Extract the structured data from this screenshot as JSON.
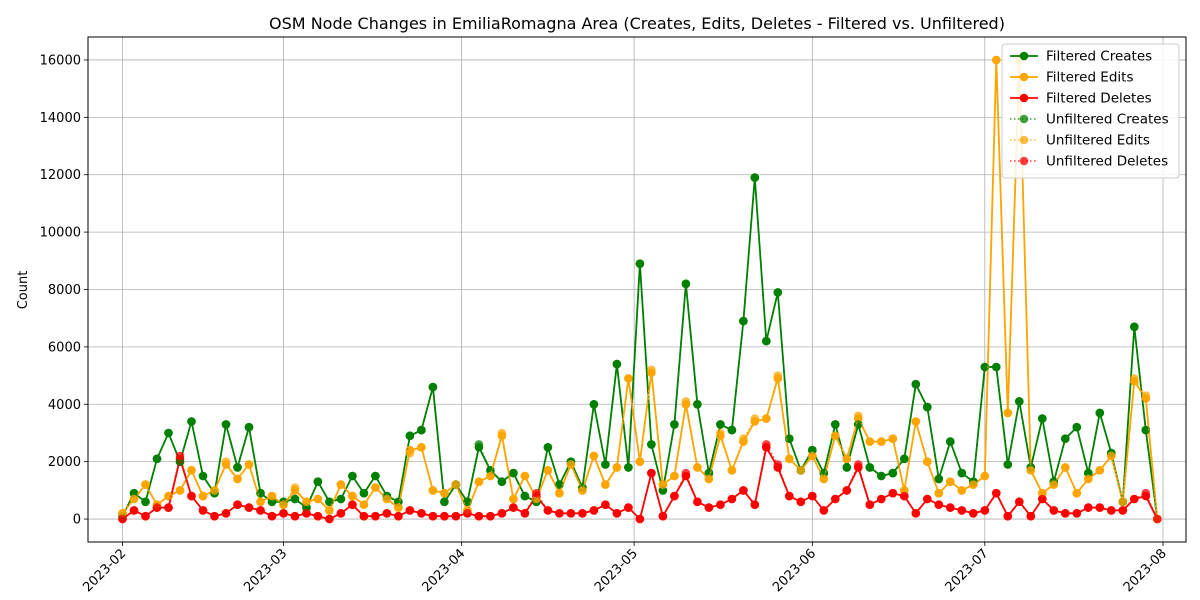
{
  "chart_data": {
    "type": "line",
    "title": "OSM Node Changes in EmiliaRomagna Area (Creates, Edits, Deletes - Filtered vs. Unfiltered)",
    "xlabel": "",
    "ylabel": "Count",
    "xlim": [
      "2023-01-26",
      "2023-08-05"
    ],
    "ylim": [
      -800,
      16800
    ],
    "x_ticks": [
      "2023-02",
      "2023-03",
      "2023-04",
      "2023-05",
      "2023-06",
      "2023-07",
      "2023-08"
    ],
    "y_ticks": [
      0,
      2000,
      4000,
      6000,
      8000,
      10000,
      12000,
      14000,
      16000
    ],
    "grid": true,
    "legend_position": "top-right",
    "x": [
      "2023-02-01",
      "2023-02-03",
      "2023-02-05",
      "2023-02-07",
      "2023-02-09",
      "2023-02-11",
      "2023-02-13",
      "2023-02-15",
      "2023-02-17",
      "2023-02-19",
      "2023-02-21",
      "2023-02-23",
      "2023-02-25",
      "2023-02-27",
      "2023-03-01",
      "2023-03-03",
      "2023-03-05",
      "2023-03-07",
      "2023-03-09",
      "2023-03-11",
      "2023-03-13",
      "2023-03-15",
      "2023-03-17",
      "2023-03-19",
      "2023-03-21",
      "2023-03-23",
      "2023-03-25",
      "2023-03-27",
      "2023-03-29",
      "2023-03-31",
      "2023-04-02",
      "2023-04-04",
      "2023-04-06",
      "2023-04-08",
      "2023-04-10",
      "2023-04-12",
      "2023-04-14",
      "2023-04-16",
      "2023-04-18",
      "2023-04-20",
      "2023-04-22",
      "2023-04-24",
      "2023-04-26",
      "2023-04-28",
      "2023-04-30",
      "2023-05-02",
      "2023-05-04",
      "2023-05-06",
      "2023-05-08",
      "2023-05-10",
      "2023-05-12",
      "2023-05-14",
      "2023-05-16",
      "2023-05-18",
      "2023-05-20",
      "2023-05-22",
      "2023-05-24",
      "2023-05-26",
      "2023-05-28",
      "2023-05-30",
      "2023-06-01",
      "2023-06-03",
      "2023-06-05",
      "2023-06-07",
      "2023-06-09",
      "2023-06-11",
      "2023-06-13",
      "2023-06-15",
      "2023-06-17",
      "2023-06-19",
      "2023-06-21",
      "2023-06-23",
      "2023-06-25",
      "2023-06-27",
      "2023-06-29",
      "2023-07-01",
      "2023-07-03",
      "2023-07-05",
      "2023-07-07",
      "2023-07-09",
      "2023-07-11",
      "2023-07-13",
      "2023-07-15",
      "2023-07-17",
      "2023-07-19",
      "2023-07-21",
      "2023-07-23",
      "2023-07-25",
      "2023-07-27",
      "2023-07-29",
      "2023-07-31"
    ],
    "series": [
      {
        "name": "Filtered Creates",
        "color": "#008000",
        "style": "solid",
        "values": [
          100,
          900,
          600,
          2100,
          3000,
          2000,
          3400,
          1500,
          900,
          3300,
          1800,
          3200,
          900,
          600,
          600,
          700,
          400,
          1300,
          600,
          700,
          1500,
          900,
          1500,
          800,
          600,
          2900,
          3100,
          4600,
          600,
          1200,
          600,
          2500,
          1700,
          1300,
          1600,
          800,
          600,
          2500,
          1200,
          2000,
          1100,
          4000,
          1900,
          5400,
          1800,
          8900,
          2600,
          1000,
          3300,
          8200,
          4000,
          1600,
          3300,
          3100,
          6900,
          11900,
          6200,
          7900,
          2800,
          1700,
          2400,
          1600,
          3300,
          1800,
          3300,
          1800,
          1500,
          1600,
          2100,
          4700,
          3900,
          1400,
          2700,
          1600,
          1300,
          5300,
          5300,
          1900,
          4100,
          1800,
          3500,
          1300,
          2800,
          3200,
          1600,
          3700,
          2300,
          600,
          6700,
          3100,
          0
        ]
      },
      {
        "name": "Filtered Edits",
        "color": "#FFA500",
        "style": "solid",
        "values": [
          200,
          700,
          1200,
          500,
          800,
          1000,
          1700,
          800,
          1000,
          1900,
          1400,
          1900,
          600,
          800,
          500,
          1000,
          600,
          700,
          300,
          1200,
          800,
          500,
          1100,
          700,
          400,
          2400,
          2500,
          1000,
          900,
          1200,
          300,
          1300,
          1500,
          2900,
          700,
          1500,
          700,
          1700,
          900,
          1900,
          1000,
          2200,
          1200,
          1800,
          4900,
          2000,
          5100,
          1200,
          1500,
          4000,
          1800,
          1400,
          2900,
          1700,
          2700,
          3400,
          3500,
          4900,
          2100,
          1700,
          2200,
          1400,
          2900,
          2100,
          3500,
          2700,
          2700,
          2800,
          1000,
          3400,
          2000,
          900,
          1300,
          1000,
          1200,
          1500,
          16000,
          3700,
          16000,
          1700,
          900,
          1200,
          1800,
          900,
          1400,
          1700,
          2200,
          600,
          4800,
          4200,
          0
        ]
      },
      {
        "name": "Filtered Deletes",
        "color": "#FF0000",
        "style": "solid",
        "values": [
          0,
          300,
          100,
          400,
          400,
          2100,
          800,
          300,
          100,
          200,
          500,
          400,
          300,
          100,
          200,
          100,
          200,
          100,
          0,
          200,
          500,
          100,
          100,
          200,
          100,
          300,
          200,
          100,
          100,
          100,
          200,
          100,
          100,
          200,
          400,
          200,
          800,
          300,
          200,
          200,
          200,
          300,
          500,
          200,
          400,
          0,
          1600,
          100,
          800,
          1500,
          600,
          400,
          500,
          700,
          1000,
          500,
          2500,
          1800,
          800,
          600,
          800,
          300,
          700,
          1000,
          1800,
          500,
          700,
          900,
          800,
          200,
          700,
          500,
          400,
          300,
          200,
          300,
          900,
          100,
          600,
          100,
          700,
          300,
          200,
          200,
          400,
          400,
          300,
          300,
          700,
          800,
          0
        ]
      },
      {
        "name": "Unfiltered Creates",
        "color": "#008000",
        "style": "dotted",
        "values": [
          100,
          900,
          600,
          2100,
          3000,
          2000,
          3400,
          1500,
          900,
          3300,
          1800,
          3200,
          900,
          600,
          600,
          700,
          400,
          1300,
          600,
          700,
          1500,
          900,
          1500,
          800,
          600,
          2900,
          3100,
          4600,
          600,
          1200,
          600,
          2600,
          1700,
          1300,
          1600,
          800,
          600,
          2500,
          1200,
          2000,
          1100,
          4000,
          1900,
          5400,
          1800,
          8900,
          2600,
          1000,
          3300,
          8200,
          4000,
          1600,
          3300,
          3100,
          6900,
          11900,
          6200,
          7900,
          2800,
          1700,
          2400,
          1600,
          3300,
          1800,
          3300,
          1800,
          1500,
          1600,
          2100,
          4700,
          3900,
          1400,
          2700,
          1600,
          1300,
          5300,
          5300,
          1900,
          4100,
          1800,
          3500,
          1300,
          2800,
          3200,
          1600,
          3700,
          2300,
          600,
          6700,
          3100,
          0
        ]
      },
      {
        "name": "Unfiltered Edits",
        "color": "#FFA500",
        "style": "dotted",
        "values": [
          200,
          700,
          1200,
          500,
          800,
          1000,
          1700,
          800,
          1000,
          2000,
          1400,
          1900,
          600,
          800,
          500,
          1100,
          600,
          700,
          300,
          1200,
          800,
          500,
          1100,
          700,
          400,
          2300,
          2500,
          1000,
          900,
          1200,
          300,
          1300,
          1500,
          3000,
          700,
          1500,
          700,
          1700,
          900,
          1900,
          1000,
          2200,
          1200,
          1800,
          4900,
          2000,
          5200,
          1200,
          1500,
          4100,
          1800,
          1400,
          3000,
          1700,
          2800,
          3500,
          3500,
          5000,
          2100,
          1700,
          2200,
          1400,
          2900,
          2100,
          3600,
          2700,
          2700,
          2800,
          1000,
          3400,
          2000,
          900,
          1300,
          1000,
          1200,
          1500,
          16000,
          3700,
          16100,
          1700,
          900,
          1200,
          1800,
          900,
          1400,
          1700,
          2200,
          600,
          4900,
          4300,
          0
        ]
      },
      {
        "name": "Unfiltered Deletes",
        "color": "#FF0000",
        "style": "dotted",
        "values": [
          0,
          300,
          100,
          400,
          400,
          2200,
          800,
          300,
          100,
          200,
          500,
          400,
          300,
          100,
          200,
          100,
          200,
          100,
          0,
          200,
          500,
          100,
          100,
          200,
          100,
          300,
          200,
          100,
          100,
          100,
          200,
          100,
          100,
          200,
          400,
          200,
          900,
          300,
          200,
          200,
          200,
          300,
          500,
          200,
          400,
          0,
          1600,
          100,
          800,
          1600,
          600,
          400,
          500,
          700,
          1000,
          500,
          2600,
          1900,
          800,
          600,
          800,
          300,
          700,
          1000,
          1900,
          500,
          700,
          900,
          800,
          200,
          700,
          500,
          400,
          300,
          200,
          300,
          900,
          100,
          600,
          100,
          700,
          300,
          200,
          200,
          400,
          400,
          300,
          300,
          700,
          900,
          0
        ]
      }
    ]
  }
}
